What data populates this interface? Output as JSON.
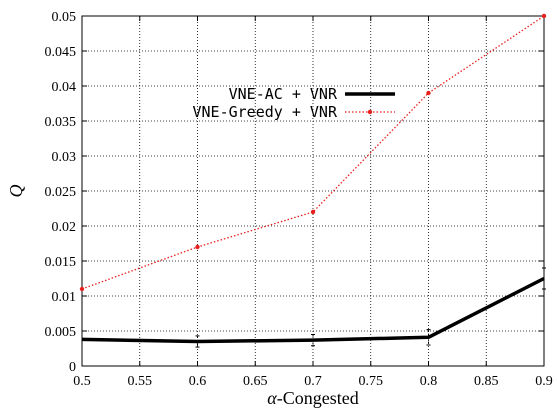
{
  "chart_data": {
    "type": "line",
    "xlabel_symbol": "α",
    "xlabel_suffix": "-Congested",
    "ylabel": "Q",
    "xlim": [
      0.5,
      0.9
    ],
    "ylim": [
      0,
      0.05
    ],
    "x_ticks": [
      "0.5",
      "0.55",
      "0.6",
      "0.65",
      "0.7",
      "0.75",
      "0.8",
      "0.85",
      "0.9"
    ],
    "y_ticks": [
      "0",
      "0.005",
      "0.01",
      "0.015",
      "0.02",
      "0.025",
      "0.03",
      "0.035",
      "0.04",
      "0.045",
      "0.05"
    ],
    "grid": true,
    "legend_position": "upper-center",
    "series": [
      {
        "name": "VNE-AC + VNR",
        "color": "#000000",
        "style": "solid-thick",
        "x": [
          0.5,
          0.6,
          0.7,
          0.8,
          0.9
        ],
        "y": [
          0.0038,
          0.0035,
          0.0037,
          0.0041,
          0.0125
        ],
        "err": [
          0,
          0.0008,
          0.0008,
          0.0011,
          0.0015
        ]
      },
      {
        "name": "VNE-Greedy + VNR",
        "color": "#e8201c",
        "style": "dotted-markers",
        "x": [
          0.5,
          0.6,
          0.7,
          0.8,
          0.9
        ],
        "y": [
          0.011,
          0.017,
          0.022,
          0.039,
          0.05
        ],
        "err": [
          0,
          0,
          0,
          0,
          0
        ]
      }
    ]
  }
}
